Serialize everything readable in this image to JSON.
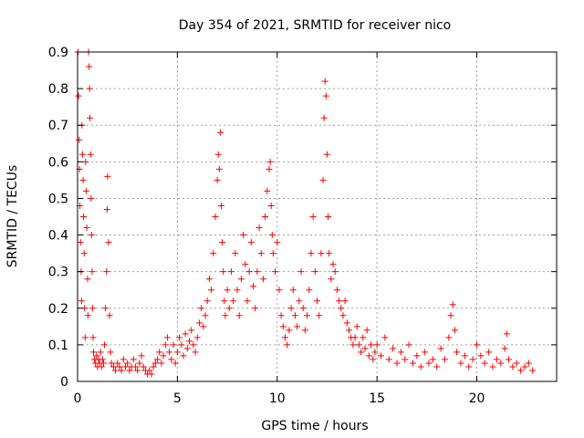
{
  "chart_data": {
    "type": "scatter",
    "title": "Day 354 of 2021, SRMTID for receiver nico",
    "xlabel": "GPS time / hours",
    "ylabel": "SRMTID / TECUs",
    "xlim": [
      0,
      24
    ],
    "ylim": [
      0,
      0.9
    ],
    "x_ticks": [
      0,
      5,
      10,
      15,
      20
    ],
    "y_ticks": [
      0,
      0.1,
      0.2,
      0.3,
      0.4,
      0.5,
      0.6,
      0.7,
      0.8,
      0.9
    ],
    "x_tick_labels": [
      "0",
      "5",
      "10",
      "15",
      "20"
    ],
    "y_tick_labels": [
      "0",
      "0.1",
      "0.2",
      "0.3",
      "0.4",
      "0.5",
      "0.6",
      "0.7",
      "0.8",
      "0.9"
    ],
    "grid": true,
    "marker": "+",
    "color": "#ff0000",
    "series": [
      {
        "name": "SRMTID",
        "points": [
          [
            0.02,
            0.9
          ],
          [
            0.05,
            0.78
          ],
          [
            0.08,
            0.66
          ],
          [
            0.1,
            0.58
          ],
          [
            0.12,
            0.48
          ],
          [
            0.15,
            0.38
          ],
          [
            0.18,
            0.3
          ],
          [
            0.2,
            0.22
          ],
          [
            0.22,
            0.7
          ],
          [
            0.25,
            0.62
          ],
          [
            0.28,
            0.55
          ],
          [
            0.3,
            0.45
          ],
          [
            0.33,
            0.35
          ],
          [
            0.35,
            0.2
          ],
          [
            0.38,
            0.12
          ],
          [
            0.4,
            0.6
          ],
          [
            0.43,
            0.52
          ],
          [
            0.46,
            0.42
          ],
          [
            0.5,
            0.28
          ],
          [
            0.52,
            0.18
          ],
          [
            0.55,
            0.9
          ],
          [
            0.58,
            0.86
          ],
          [
            0.6,
            0.8
          ],
          [
            0.62,
            0.72
          ],
          [
            0.65,
            0.62
          ],
          [
            0.68,
            0.5
          ],
          [
            0.7,
            0.4
          ],
          [
            0.73,
            0.3
          ],
          [
            0.75,
            0.2
          ],
          [
            0.78,
            0.12
          ],
          [
            0.8,
            0.08
          ],
          [
            0.85,
            0.06
          ],
          [
            0.9,
            0.05
          ],
          [
            0.95,
            0.07
          ],
          [
            1.0,
            0.04
          ],
          [
            1.05,
            0.06
          ],
          [
            1.1,
            0.05
          ],
          [
            1.15,
            0.08
          ],
          [
            1.2,
            0.04
          ],
          [
            1.25,
            0.06
          ],
          [
            1.3,
            0.05
          ],
          [
            1.35,
            0.1
          ],
          [
            1.4,
            0.2
          ],
          [
            1.45,
            0.3
          ],
          [
            1.48,
            0.47
          ],
          [
            1.5,
            0.56
          ],
          [
            1.55,
            0.38
          ],
          [
            1.6,
            0.18
          ],
          [
            1.65,
            0.08
          ],
          [
            1.7,
            0.05
          ],
          [
            1.8,
            0.04
          ],
          [
            1.9,
            0.03
          ],
          [
            2.0,
            0.05
          ],
          [
            2.1,
            0.04
          ],
          [
            2.2,
            0.03
          ],
          [
            2.3,
            0.06
          ],
          [
            2.4,
            0.04
          ],
          [
            2.5,
            0.05
          ],
          [
            2.6,
            0.03
          ],
          [
            2.7,
            0.04
          ],
          [
            2.8,
            0.06
          ],
          [
            2.9,
            0.04
          ],
          [
            3.0,
            0.03
          ],
          [
            3.1,
            0.05
          ],
          [
            3.2,
            0.07
          ],
          [
            3.3,
            0.04
          ],
          [
            3.4,
            0.03
          ],
          [
            3.5,
            0.02
          ],
          [
            3.6,
            0.03
          ],
          [
            3.7,
            0.02
          ],
          [
            3.8,
            0.04
          ],
          [
            3.9,
            0.05
          ],
          [
            4.0,
            0.06
          ],
          [
            4.1,
            0.08
          ],
          [
            4.2,
            0.05
          ],
          [
            4.3,
            0.07
          ],
          [
            4.4,
            0.1
          ],
          [
            4.5,
            0.12
          ],
          [
            4.6,
            0.08
          ],
          [
            4.7,
            0.06
          ],
          [
            4.8,
            0.1
          ],
          [
            4.9,
            0.05
          ],
          [
            5.0,
            0.08
          ],
          [
            5.1,
            0.12
          ],
          [
            5.2,
            0.1
          ],
          [
            5.3,
            0.07
          ],
          [
            5.4,
            0.13
          ],
          [
            5.5,
            0.09
          ],
          [
            5.6,
            0.11
          ],
          [
            5.7,
            0.14
          ],
          [
            5.8,
            0.1
          ],
          [
            5.9,
            0.08
          ],
          [
            6.0,
            0.12
          ],
          [
            6.1,
            0.16
          ],
          [
            6.2,
            0.2
          ],
          [
            6.3,
            0.15
          ],
          [
            6.4,
            0.18
          ],
          [
            6.5,
            0.22
          ],
          [
            6.6,
            0.28
          ],
          [
            6.7,
            0.25
          ],
          [
            6.8,
            0.35
          ],
          [
            6.9,
            0.45
          ],
          [
            7.0,
            0.55
          ],
          [
            7.05,
            0.62
          ],
          [
            7.1,
            0.58
          ],
          [
            7.15,
            0.68
          ],
          [
            7.2,
            0.48
          ],
          [
            7.25,
            0.38
          ],
          [
            7.3,
            0.3
          ],
          [
            7.35,
            0.22
          ],
          [
            7.4,
            0.18
          ],
          [
            7.5,
            0.25
          ],
          [
            7.6,
            0.2
          ],
          [
            7.7,
            0.3
          ],
          [
            7.8,
            0.22
          ],
          [
            7.9,
            0.35
          ],
          [
            8.0,
            0.25
          ],
          [
            8.1,
            0.18
          ],
          [
            8.2,
            0.28
          ],
          [
            8.3,
            0.4
          ],
          [
            8.4,
            0.32
          ],
          [
            8.5,
            0.22
          ],
          [
            8.6,
            0.3
          ],
          [
            8.7,
            0.38
          ],
          [
            8.8,
            0.26
          ],
          [
            8.9,
            0.2
          ],
          [
            9.0,
            0.3
          ],
          [
            9.1,
            0.42
          ],
          [
            9.2,
            0.35
          ],
          [
            9.3,
            0.28
          ],
          [
            9.4,
            0.45
          ],
          [
            9.5,
            0.52
          ],
          [
            9.6,
            0.58
          ],
          [
            9.65,
            0.6
          ],
          [
            9.7,
            0.48
          ],
          [
            9.75,
            0.4
          ],
          [
            9.8,
            0.35
          ],
          [
            9.9,
            0.3
          ],
          [
            10.0,
            0.38
          ],
          [
            10.1,
            0.25
          ],
          [
            10.2,
            0.18
          ],
          [
            10.3,
            0.15
          ],
          [
            10.4,
            0.12
          ],
          [
            10.5,
            0.1
          ],
          [
            10.6,
            0.14
          ],
          [
            10.7,
            0.2
          ],
          [
            10.8,
            0.25
          ],
          [
            10.9,
            0.18
          ],
          [
            11.0,
            0.15
          ],
          [
            11.1,
            0.22
          ],
          [
            11.2,
            0.3
          ],
          [
            11.3,
            0.2
          ],
          [
            11.4,
            0.14
          ],
          [
            11.5,
            0.18
          ],
          [
            11.6,
            0.25
          ],
          [
            11.7,
            0.35
          ],
          [
            11.8,
            0.45
          ],
          [
            11.9,
            0.3
          ],
          [
            12.0,
            0.22
          ],
          [
            12.1,
            0.18
          ],
          [
            12.2,
            0.35
          ],
          [
            12.3,
            0.55
          ],
          [
            12.35,
            0.72
          ],
          [
            12.4,
            0.82
          ],
          [
            12.45,
            0.78
          ],
          [
            12.5,
            0.62
          ],
          [
            12.55,
            0.45
          ],
          [
            12.6,
            0.35
          ],
          [
            12.7,
            0.28
          ],
          [
            12.8,
            0.32
          ],
          [
            12.9,
            0.3
          ],
          [
            13.0,
            0.25
          ],
          [
            13.1,
            0.22
          ],
          [
            13.2,
            0.2
          ],
          [
            13.3,
            0.18
          ],
          [
            13.4,
            0.22
          ],
          [
            13.5,
            0.16
          ],
          [
            13.6,
            0.14
          ],
          [
            13.7,
            0.12
          ],
          [
            13.8,
            0.1
          ],
          [
            13.9,
            0.12
          ],
          [
            14.0,
            0.15
          ],
          [
            14.1,
            0.1
          ],
          [
            14.2,
            0.08
          ],
          [
            14.3,
            0.12
          ],
          [
            14.4,
            0.09
          ],
          [
            14.5,
            0.14
          ],
          [
            14.6,
            0.07
          ],
          [
            14.7,
            0.1
          ],
          [
            14.8,
            0.06
          ],
          [
            14.9,
            0.08
          ],
          [
            15.0,
            0.1
          ],
          [
            15.2,
            0.07
          ],
          [
            15.4,
            0.12
          ],
          [
            15.6,
            0.06
          ],
          [
            15.8,
            0.09
          ],
          [
            16.0,
            0.05
          ],
          [
            16.2,
            0.08
          ],
          [
            16.4,
            0.06
          ],
          [
            16.6,
            0.1
          ],
          [
            16.8,
            0.05
          ],
          [
            17.0,
            0.07
          ],
          [
            17.2,
            0.04
          ],
          [
            17.4,
            0.08
          ],
          [
            17.6,
            0.05
          ],
          [
            17.8,
            0.06
          ],
          [
            18.0,
            0.04
          ],
          [
            18.2,
            0.09
          ],
          [
            18.4,
            0.06
          ],
          [
            18.6,
            0.12
          ],
          [
            18.7,
            0.18
          ],
          [
            18.8,
            0.21
          ],
          [
            18.9,
            0.14
          ],
          [
            19.0,
            0.08
          ],
          [
            19.2,
            0.05
          ],
          [
            19.4,
            0.07
          ],
          [
            19.6,
            0.04
          ],
          [
            19.8,
            0.06
          ],
          [
            20.0,
            0.1
          ],
          [
            20.2,
            0.07
          ],
          [
            20.4,
            0.05
          ],
          [
            20.6,
            0.08
          ],
          [
            20.8,
            0.04
          ],
          [
            21.0,
            0.06
          ],
          [
            21.2,
            0.05
          ],
          [
            21.4,
            0.09
          ],
          [
            21.5,
            0.13
          ],
          [
            21.6,
            0.06
          ],
          [
            21.8,
            0.04
          ],
          [
            22.0,
            0.05
          ],
          [
            22.2,
            0.03
          ],
          [
            22.4,
            0.04
          ],
          [
            22.6,
            0.05
          ],
          [
            22.8,
            0.03
          ]
        ]
      }
    ]
  }
}
